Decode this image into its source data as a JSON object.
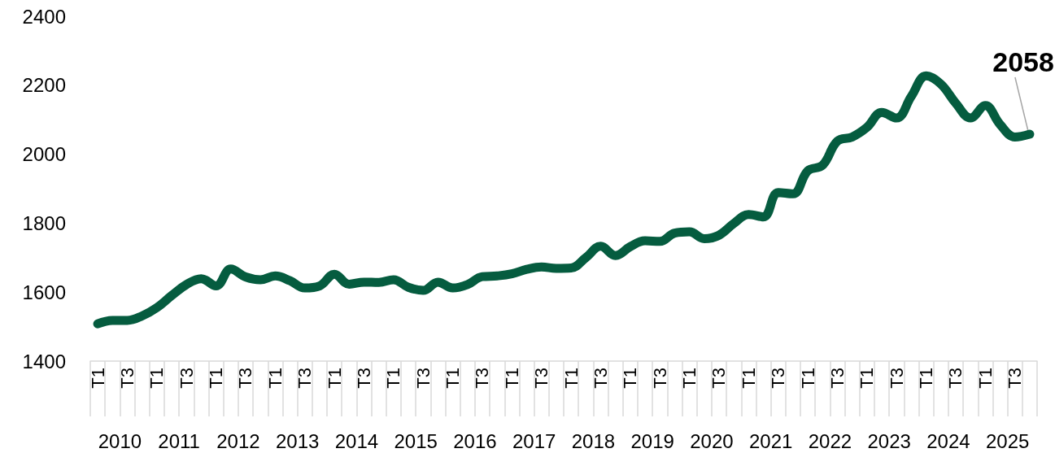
{
  "chart_data": {
    "type": "line",
    "color": "#055c3f",
    "categories": [
      "T1",
      null,
      "T3",
      null,
      "T1",
      null,
      "T3",
      null,
      "T1",
      null,
      "T3",
      null,
      "T1",
      null,
      "T3",
      null,
      "T1",
      null,
      "T3",
      null,
      "T1",
      null,
      "T3",
      null,
      "T1",
      null,
      "T3",
      null,
      "T1",
      null,
      "T3",
      null,
      "T1",
      null,
      "T3",
      null,
      "T1",
      null,
      "T3",
      null,
      "T1",
      null,
      "T3",
      null,
      "T1",
      null,
      "T3",
      null,
      "T1",
      null,
      "T3",
      null,
      "T1",
      null,
      "T3",
      null,
      "T1",
      null,
      "T3",
      null,
      "T1",
      null,
      "T3",
      null
    ],
    "values": [
      1508,
      1518,
      1518,
      1531,
      1555,
      1590,
      1622,
      1639,
      1618,
      1667,
      1644,
      1636,
      1647,
      1633,
      1612,
      1618,
      1652,
      1623,
      1629,
      1628,
      1636,
      1614,
      1605,
      1629,
      1612,
      1622,
      1645,
      1647,
      1653,
      1666,
      1673,
      1669,
      1670,
      1700,
      1733,
      1706,
      1732,
      1749,
      1747,
      1771,
      1775,
      1755,
      1765,
      1799,
      1825,
      1818,
      1889,
      1885,
      1952,
      1968,
      2038,
      2050,
      2078,
      2121,
      2105,
      2168,
      2227,
      2203,
      2148,
      2105,
      2141,
      2086,
      2050,
      2058
    ],
    "ylim": [
      1400,
      2400
    ],
    "yticks": [
      1400,
      1600,
      1800,
      2000,
      2200,
      2400
    ],
    "grid": false,
    "line_style": "solid",
    "annotations": [
      "2010",
      "2011",
      "2012",
      "2013",
      "2014",
      "2015",
      "2016",
      "2017",
      "2018",
      "2019",
      "2020",
      "2021",
      "2022",
      "2023",
      "2024",
      "2025",
      {
        "text": "2058",
        "y": 2058
      }
    ]
  }
}
